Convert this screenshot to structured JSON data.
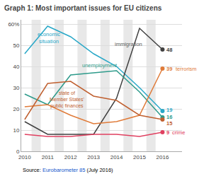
{
  "chart_data": {
    "type": "line",
    "title": "Graph 1: Most important issues for EU citizens",
    "x": [
      2010,
      2011,
      2012,
      2013,
      2014,
      2015,
      2016
    ],
    "series": [
      {
        "color": "#29a8c8",
        "values": [
          46,
          59,
          54,
          46,
          40,
          30,
          19
        ]
      },
      {
        "color": "#404040",
        "values": [
          14,
          8,
          8,
          8,
          25,
          58,
          48
        ]
      },
      {
        "color": "#2e9b8b",
        "values": [
          27,
          22,
          36,
          37,
          38,
          28,
          16
        ]
      },
      {
        "color": "#e07b39",
        "values": [
          21,
          22,
          17,
          13,
          14,
          17,
          39
        ]
      },
      {
        "color": "#c06030",
        "values": [
          15,
          32,
          33,
          26,
          24,
          17,
          15
        ]
      },
      {
        "color": "#e04060",
        "values": [
          8,
          7,
          7,
          8,
          8,
          7,
          9
        ]
      }
    ],
    "shaded_regions": [
      [
        2010.3,
        2010.7
      ],
      [
        2011.3,
        2011.7
      ],
      [
        2012.3,
        2012.7
      ],
      [
        2013.3,
        2013.7
      ],
      [
        2014.3,
        2014.7
      ],
      [
        2015.3,
        2015.7
      ]
    ],
    "xlim": [
      2009.85,
      2016.85
    ],
    "xticks": [
      2010,
      2011,
      2012,
      2013,
      2014,
      2015,
      2016
    ],
    "ylim": [
      0,
      62
    ],
    "yticks": [
      0,
      10,
      20,
      30,
      40,
      50,
      {
        "value": 60,
        "label": "60%"
      }
    ],
    "grid": true,
    "annotations": [
      {
        "text": "48",
        "color": "#404040"
      },
      {
        "text": "39",
        "color": "#e07b39"
      },
      {
        "text": "19",
        "color": "#29a8c8"
      },
      {
        "text": "16",
        "color": "#2e9b8b"
      },
      {
        "text": "15",
        "color": "#c06030"
      },
      {
        "text": "9",
        "color": "#e04060"
      },
      {
        "text": "terrorism",
        "color": "#e07b39"
      },
      {
        "text": "crime",
        "color": "#e04060"
      },
      {
        "text": "economic\nsituation",
        "color": "#29a8c8"
      },
      {
        "text": "unemployment",
        "color": "#2e9b8b"
      },
      {
        "text": "immigration",
        "color": "#606060"
      },
      {
        "text": "state of\nMember States'\npublic finances",
        "color": "#c06030"
      },
      {
        "text": "Source: ",
        "color": "#000000"
      },
      {
        "text": "Eurobarometer 85",
        "color": "#1155cc"
      },
      {
        "text": " (July 2016)",
        "color": "#000000"
      }
    ]
  }
}
